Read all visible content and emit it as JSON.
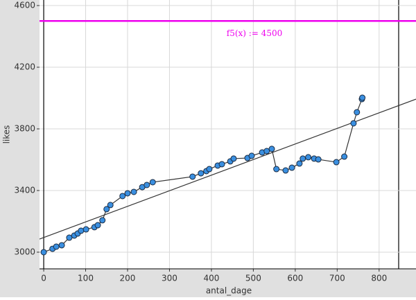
{
  "chart_data": {
    "type": "scatter",
    "x_label": "antal_dage",
    "y_label": "likes",
    "xlim": [
      -10,
      888
    ],
    "ylim": [
      2892,
      4636
    ],
    "xticks": [
      0,
      100,
      200,
      300,
      400,
      500,
      600,
      700,
      800
    ],
    "yticks": [
      3000,
      3400,
      3800,
      4200,
      4600
    ],
    "grid": true,
    "series": [
      {
        "color": "#3a8fe0",
        "connected": true,
        "x": [
          0,
          21,
          30,
          43,
          61,
          73,
          81,
          89,
          101,
          121,
          129,
          140,
          150,
          159,
          188,
          200,
          215,
          235,
          246,
          260,
          355,
          375,
          388,
          395,
          415,
          425,
          445,
          453,
          486,
          496,
          521,
          532,
          544,
          555,
          577,
          592,
          610,
          618,
          631,
          645,
          655,
          698,
          717,
          739,
          747,
          759,
          760
        ],
        "values": [
          3000,
          3022,
          3036,
          3045,
          3094,
          3108,
          3121,
          3139,
          3148,
          3162,
          3175,
          3207,
          3279,
          3306,
          3364,
          3382,
          3391,
          3422,
          3436,
          3454,
          3490,
          3512,
          3526,
          3539,
          3562,
          3571,
          3589,
          3607,
          3611,
          3625,
          3647,
          3656,
          3670,
          3539,
          3530,
          3548,
          3575,
          3607,
          3616,
          3607,
          3602,
          3584,
          3620,
          3836,
          3908,
          3993,
          4002
        ]
      }
    ],
    "regression": {
      "x": [
        -10,
        888
      ],
      "values": [
        3085,
        3993
      ],
      "color": "#333333"
    },
    "function": {
      "label": "f5(x) := 4500",
      "value": 4500,
      "color": "#ee00ee"
    }
  }
}
